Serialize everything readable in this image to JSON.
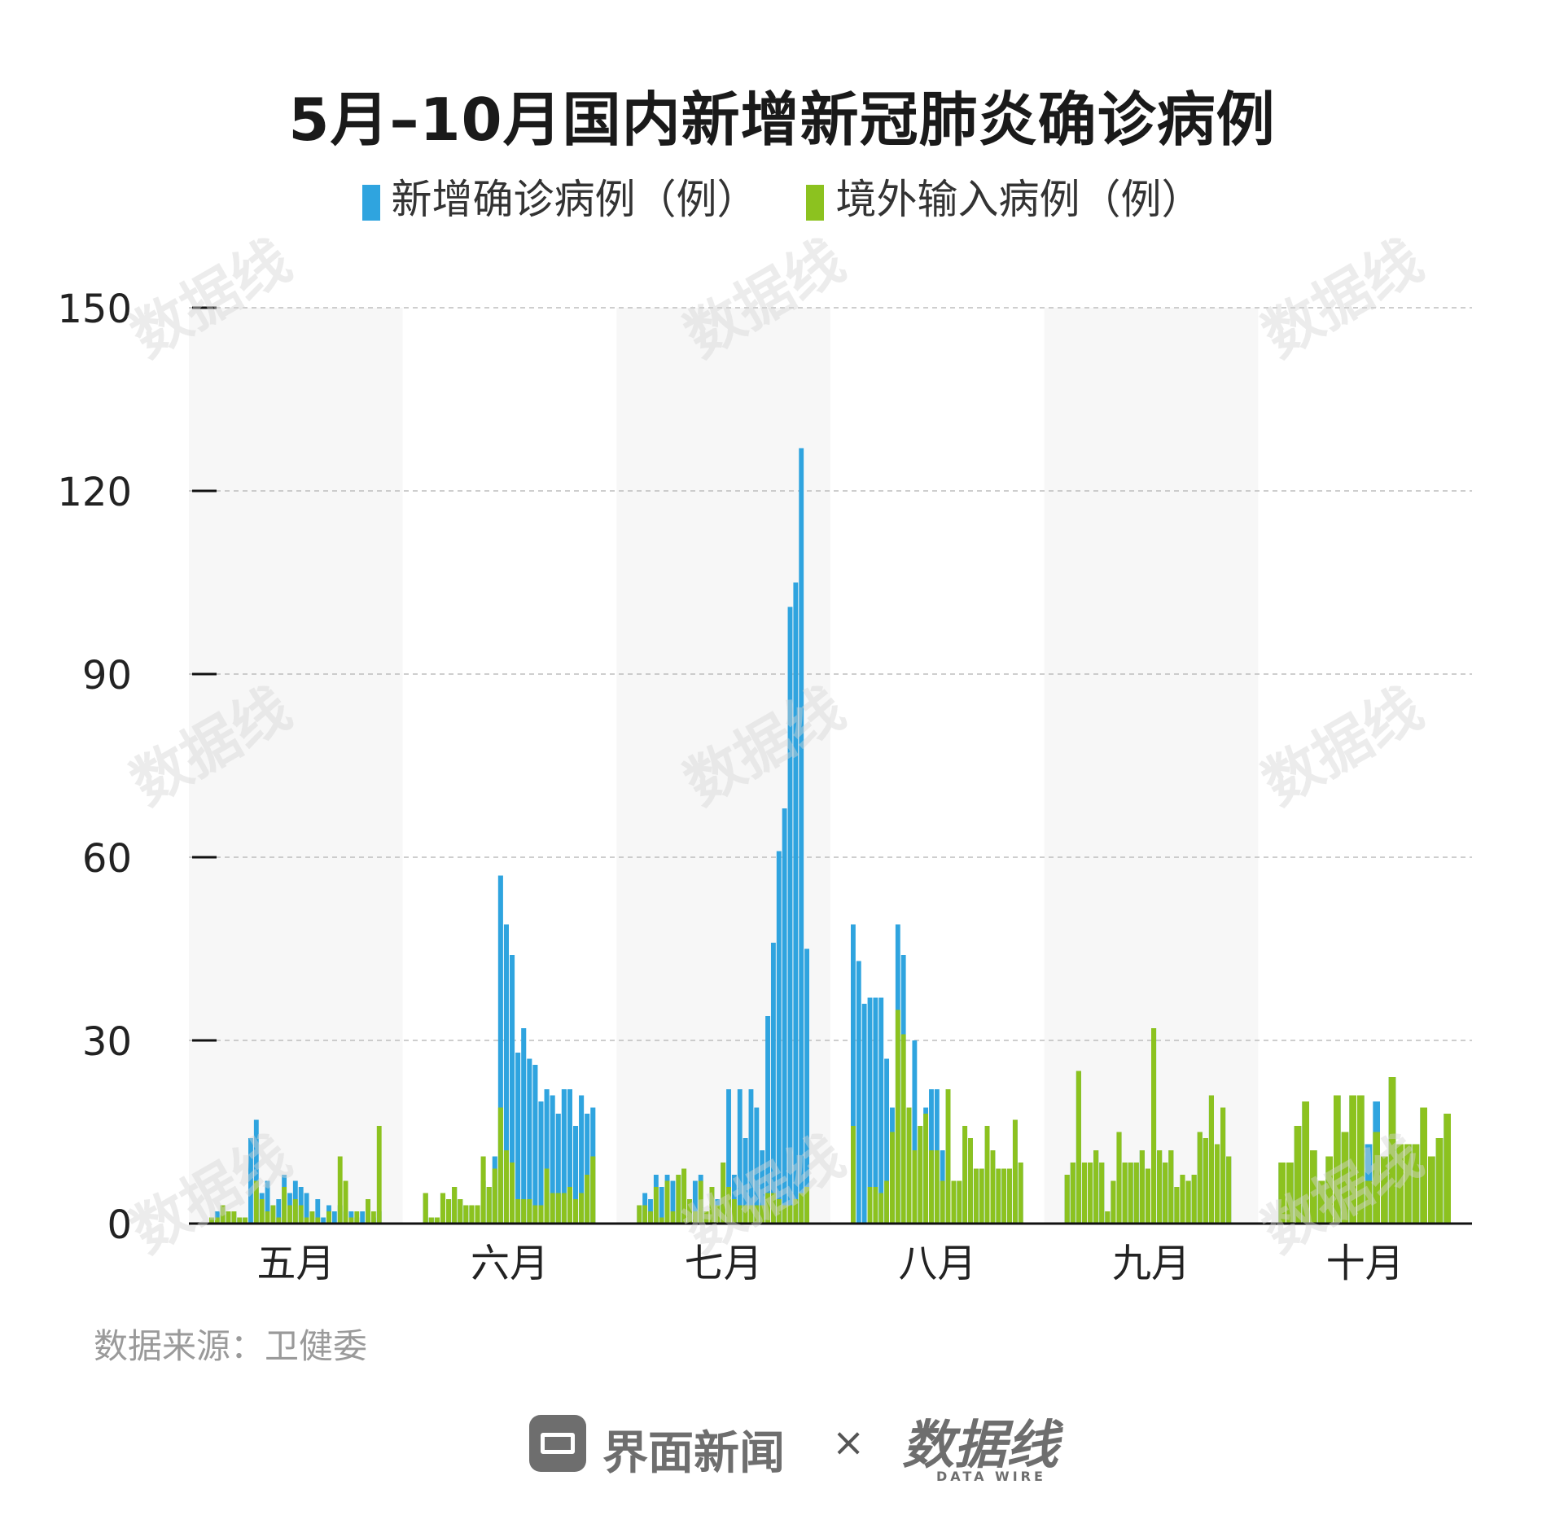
{
  "title": "5月–10月国内新增新冠肺炎确诊病例",
  "legend": {
    "confirmed_label": "新增确诊病例（例）",
    "imported_label": "境外输入病例（例）"
  },
  "colors": {
    "confirmed": "#2FA4DF",
    "imported": "#8CC21F",
    "band": "#F7F7F7"
  },
  "source": "数据来源：卫健委",
  "footer": {
    "brand": "界面新闻",
    "times": "×",
    "partner": "数据线",
    "partner_sub": "DATA WIRE"
  },
  "watermark": "数据线",
  "chart_data": {
    "type": "bar",
    "stacked": false,
    "overlay": true,
    "ylim": [
      0,
      150
    ],
    "yticks": [
      0,
      30,
      60,
      90,
      120,
      150
    ],
    "grid": true,
    "months": [
      {
        "name": "五月",
        "confirmed": [
          1,
          2,
          3,
          2,
          2,
          1,
          1,
          14,
          17,
          5,
          7,
          3,
          4,
          8,
          5,
          7,
          6,
          5,
          2,
          4,
          1,
          3,
          2,
          3,
          2,
          2,
          1,
          2,
          4,
          1,
          2
        ],
        "imported": [
          1,
          1,
          3,
          2,
          2,
          1,
          1,
          0,
          7,
          4,
          2,
          3,
          1,
          6,
          3,
          4,
          3,
          1,
          2,
          1,
          0,
          2,
          0,
          11,
          7,
          1,
          2,
          0,
          4,
          2,
          16
        ]
      },
      {
        "name": "六月",
        "confirmed": [
          5,
          1,
          1,
          5,
          4,
          6,
          4,
          3,
          3,
          3,
          7,
          6,
          11,
          57,
          49,
          44,
          28,
          32,
          27,
          26,
          20,
          22,
          21,
          18,
          22,
          22,
          16,
          21,
          18,
          19
        ],
        "imported": [
          5,
          1,
          1,
          5,
          4,
          6,
          4,
          3,
          3,
          3,
          11,
          6,
          9,
          19,
          12,
          10,
          4,
          4,
          4,
          3,
          3,
          9,
          5,
          5,
          5,
          6,
          4,
          5,
          8,
          11
        ]
      },
      {
        "name": "七月",
        "confirmed": [
          3,
          5,
          4,
          8,
          6,
          8,
          7,
          8,
          9,
          4,
          7,
          8,
          2,
          6,
          4,
          10,
          22,
          8,
          22,
          14,
          22,
          19,
          12,
          34,
          46,
          61,
          68,
          101,
          105,
          127,
          45
        ],
        "imported": [
          3,
          3,
          2,
          6,
          1,
          7,
          2,
          8,
          9,
          4,
          2,
          7,
          2,
          6,
          3,
          10,
          6,
          4,
          3,
          3,
          3,
          3,
          3,
          5,
          5,
          4,
          3,
          3,
          4,
          5,
          6
        ]
      },
      {
        "name": "八月",
        "confirmed": [
          49,
          43,
          36,
          37,
          37,
          37,
          27,
          19,
          49,
          44,
          19,
          30,
          16,
          19,
          22,
          22,
          12,
          22,
          7,
          7,
          16,
          14,
          9,
          9,
          16,
          12,
          9,
          9,
          9,
          17,
          10
        ],
        "imported": [
          16,
          0,
          0,
          6,
          6,
          5,
          7,
          15,
          35,
          31,
          19,
          12,
          16,
          18,
          12,
          12,
          7,
          22,
          7,
          7,
          16,
          14,
          9,
          9,
          16,
          12,
          9,
          9,
          9,
          17,
          10
        ]
      },
      {
        "name": "九月",
        "confirmed": [
          8,
          10,
          25,
          10,
          10,
          12,
          10,
          2,
          7,
          15,
          10,
          10,
          10,
          12,
          9,
          32,
          12,
          10,
          12,
          6,
          8,
          7,
          8,
          15,
          14,
          21,
          13,
          19,
          11,
          0
        ],
        "imported": [
          8,
          10,
          25,
          10,
          10,
          12,
          10,
          2,
          7,
          15,
          10,
          10,
          10,
          12,
          9,
          32,
          12,
          10,
          12,
          6,
          8,
          7,
          8,
          15,
          14,
          21,
          13,
          19,
          11,
          0
        ]
      },
      {
        "name": "十月",
        "confirmed": [
          10,
          10,
          16,
          20,
          12,
          7,
          11,
          21,
          15,
          21,
          21,
          13,
          20,
          11,
          24,
          13,
          13,
          13,
          19,
          11,
          14,
          18
        ],
        "imported": [
          10,
          10,
          16,
          20,
          12,
          7,
          11,
          21,
          15,
          21,
          21,
          7,
          15,
          11,
          24,
          13,
          13,
          13,
          19,
          11,
          14,
          18
        ]
      }
    ]
  }
}
